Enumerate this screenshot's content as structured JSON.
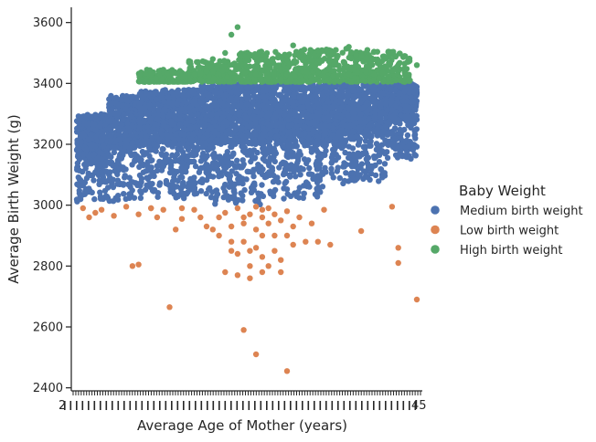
{
  "chart_data": {
    "type": "scatter",
    "title": "",
    "xlabel": "Average Age of Mother (years)",
    "ylabel": "Average Birth Weight (g)",
    "x_kind": "categorical strip (age categories, overlapping tick labels)",
    "x_first_tick_label": "2",
    "x_last_tick_label": "45",
    "ylim": [
      2390,
      3650
    ],
    "yticks": [
      2400,
      2600,
      2800,
      3000,
      3200,
      3400,
      3600
    ],
    "grid": false,
    "legend_title": "Baby Weight",
    "legend_position": "right",
    "series": [
      {
        "name": "Medium birth weight",
        "color": "#4c72b0",
        "bands": [
          {
            "x": [
              0,
              5
            ],
            "ylim": [
              3010,
              3300
            ]
          },
          {
            "x": [
              5,
              10
            ],
            "ylim": [
              3010,
              3360
            ]
          },
          {
            "x": [
              10,
              20
            ],
            "ylim": [
              3020,
              3380
            ]
          },
          {
            "x": [
              20,
              30
            ],
            "ylim": [
              3000,
              3400
            ]
          },
          {
            "x": [
              30,
              40
            ],
            "ylim": [
              3020,
              3400
            ]
          },
          {
            "x": [
              40,
              50
            ],
            "ylim": [
              3070,
              3400
            ]
          },
          {
            "x": [
              50,
              55
            ],
            "ylim": [
              3150,
              3400
            ]
          }
        ]
      },
      {
        "name": "Low birth weight",
        "color": "#dd8452",
        "points": [
          [
            1,
            2990
          ],
          [
            2,
            2960
          ],
          [
            3,
            2975
          ],
          [
            4,
            2985
          ],
          [
            6,
            2965
          ],
          [
            8,
            2995
          ],
          [
            10,
            2970
          ],
          [
            12,
            2990
          ],
          [
            13,
            2960
          ],
          [
            9,
            2800
          ],
          [
            10,
            2805
          ],
          [
            12,
            2990
          ],
          [
            15,
            2665
          ],
          [
            16,
            2920
          ],
          [
            17,
            2990
          ],
          [
            17,
            2955
          ],
          [
            20,
            2960
          ],
          [
            21,
            2930
          ],
          [
            22,
            2920
          ],
          [
            23,
            2960
          ],
          [
            24,
            2975
          ],
          [
            24,
            2780
          ],
          [
            25,
            2930
          ],
          [
            25,
            2880
          ],
          [
            25,
            2850
          ],
          [
            26,
            2770
          ],
          [
            26,
            2990
          ],
          [
            27,
            2960
          ],
          [
            27,
            2940
          ],
          [
            27,
            2880
          ],
          [
            27,
            2590
          ],
          [
            28,
            2800
          ],
          [
            28,
            2970
          ],
          [
            28,
            2850
          ],
          [
            29,
            2920
          ],
          [
            29,
            2860
          ],
          [
            29,
            2995
          ],
          [
            29,
            2510
          ],
          [
            30,
            2830
          ],
          [
            30,
            2780
          ],
          [
            30,
            2960
          ],
          [
            30,
            2900
          ],
          [
            30,
            2985
          ],
          [
            31,
            2940
          ],
          [
            31,
            2800
          ],
          [
            31,
            2990
          ],
          [
            32,
            2900
          ],
          [
            32,
            2850
          ],
          [
            32,
            2970
          ],
          [
            33,
            2950
          ],
          [
            33,
            2820
          ],
          [
            33,
            2780
          ],
          [
            34,
            2455
          ],
          [
            34,
            2900
          ],
          [
            34,
            2980
          ],
          [
            35,
            2930
          ],
          [
            35,
            2870
          ],
          [
            36,
            2960
          ],
          [
            37,
            2880
          ],
          [
            38,
            2940
          ],
          [
            39,
            2880
          ],
          [
            40,
            2985
          ],
          [
            41,
            2870
          ],
          [
            46,
            2915
          ],
          [
            51,
            2995
          ],
          [
            52,
            2860
          ],
          [
            52,
            2810
          ],
          [
            55,
            2690
          ],
          [
            14,
            2985
          ],
          [
            19,
            2985
          ],
          [
            23,
            2900
          ],
          [
            26,
            2840
          ],
          [
            28,
            2760
          ]
        ]
      },
      {
        "name": "High birth weight",
        "color": "#55a868",
        "bands": [
          {
            "x": [
              10,
              18
            ],
            "ylim": [
              3400,
              3440
            ]
          },
          {
            "x": [
              18,
              26
            ],
            "ylim": [
              3400,
              3470
            ]
          },
          {
            "x": [
              26,
              34
            ],
            "ylim": [
              3400,
              3500
            ]
          },
          {
            "x": [
              34,
              44
            ],
            "ylim": [
              3400,
              3510
            ]
          },
          {
            "x": [
              44,
              54
            ],
            "ylim": [
              3400,
              3500
            ]
          }
        ],
        "extra_points": [
          [
            11,
            3405
          ],
          [
            12,
            3430
          ],
          [
            14,
            3445
          ],
          [
            17,
            3420
          ],
          [
            21,
            3440
          ],
          [
            22,
            3480
          ],
          [
            24,
            3500
          ],
          [
            25,
            3560
          ],
          [
            26,
            3585
          ],
          [
            35,
            3525
          ],
          [
            44,
            3520
          ],
          [
            47,
            3510
          ],
          [
            53,
            3490
          ],
          [
            55,
            3460
          ]
        ]
      }
    ]
  }
}
